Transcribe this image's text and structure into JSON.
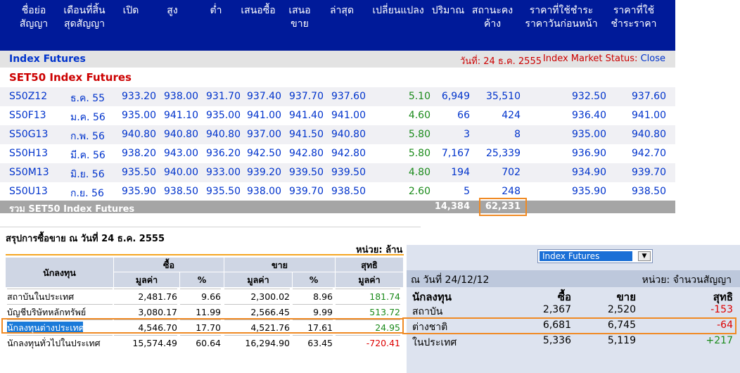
{
  "header": {
    "columns": [
      "ชื่อย่อ\nสัญญา",
      "เดือนที่สิ้น\nสุดสัญญา",
      "เปิด",
      "สูง",
      "ต่ำ",
      "เสนอซื้อ",
      "เสนอ\nขาย",
      "ล่าสุด",
      "เปลี่ยนแปลง",
      "ปริมาณ",
      "สถานะคง\nค้าง",
      "ราคาที่ใช้ชำระ\nราคาวันก่อนหน้า",
      "ราคาที่ใช้\nชำระราคา"
    ]
  },
  "bar": {
    "title": "Index Futures",
    "date": "วันที่: 24 ธ.ค. 2555",
    "status_label": "Index Market Status:",
    "status_value": "Close"
  },
  "section_title": "SET50 Index Futures",
  "futures": [
    {
      "symbol": "S50Z12",
      "month": "ธ.ค. 55",
      "open": "933.20",
      "high": "938.00",
      "low": "931.70",
      "bid": "937.40",
      "offer": "937.70",
      "last": "937.60",
      "change": "5.10",
      "volume": "6,949",
      "oi": "35,510",
      "prev_settle": "932.50",
      "settle": "937.60"
    },
    {
      "symbol": "S50F13",
      "month": "ม.ค. 56",
      "open": "935.00",
      "high": "941.10",
      "low": "935.00",
      "bid": "941.00",
      "offer": "941.40",
      "last": "941.00",
      "change": "4.60",
      "volume": "66",
      "oi": "424",
      "prev_settle": "936.40",
      "settle": "941.00"
    },
    {
      "symbol": "S50G13",
      "month": "ก.พ. 56",
      "open": "940.80",
      "high": "940.80",
      "low": "940.80",
      "bid": "937.00",
      "offer": "941.50",
      "last": "940.80",
      "change": "5.80",
      "volume": "3",
      "oi": "8",
      "prev_settle": "935.00",
      "settle": "940.80"
    },
    {
      "symbol": "S50H13",
      "month": "มี.ค. 56",
      "open": "938.20",
      "high": "943.00",
      "low": "936.20",
      "bid": "942.50",
      "offer": "942.80",
      "last": "942.80",
      "change": "5.80",
      "volume": "7,167",
      "oi": "25,339",
      "prev_settle": "936.90",
      "settle": "942.70"
    },
    {
      "symbol": "S50M13",
      "month": "มิ.ย. 56",
      "open": "935.50",
      "high": "940.00",
      "low": "933.00",
      "bid": "939.20",
      "offer": "939.50",
      "last": "939.50",
      "change": "4.80",
      "volume": "194",
      "oi": "702",
      "prev_settle": "934.90",
      "settle": "939.70"
    },
    {
      "symbol": "S50U13",
      "month": "ก.ย. 56",
      "open": "935.90",
      "high": "938.50",
      "low": "935.50",
      "bid": "938.00",
      "offer": "939.70",
      "last": "938.50",
      "change": "2.60",
      "volume": "5",
      "oi": "248",
      "prev_settle": "935.90",
      "settle": "938.50"
    }
  ],
  "total": {
    "label": "รวม SET50 Index Futures",
    "volume": "14,384",
    "oi": "62,231"
  },
  "summary": {
    "title": "สรุปการซื้อขาย ณ วันที่ 24 ธ.ค. 2555",
    "unit": "หน่วย: ล้าน",
    "h_investor": "นักลงทุน",
    "h_buy": "ซื้อ",
    "h_sell": "ขาย",
    "h_net": "สุทธิ",
    "h_value": "มูลค่า",
    "h_pct": "%",
    "rows": [
      {
        "name": "สถาบันในประเทศ",
        "buy": "2,481.76",
        "buy_pct": "9.66",
        "sell": "2,300.02",
        "sell_pct": "8.96",
        "net": "181.74"
      },
      {
        "name": "บัญชีบริษัทหลักทรัพย์",
        "buy": "3,080.17",
        "buy_pct": "11.99",
        "sell": "2,566.45",
        "sell_pct": "9.99",
        "net": "513.72"
      },
      {
        "name": "นักลงทุนต่างประเทศ",
        "buy": "4,546.70",
        "buy_pct": "17.70",
        "sell": "4,521.76",
        "sell_pct": "17.61",
        "net": "24.95"
      },
      {
        "name": "นักลงทุนทั่วไปในประเทศ",
        "buy": "15,574.49",
        "buy_pct": "60.64",
        "sell": "16,294.90",
        "sell_pct": "63.45",
        "net": "-720.41"
      }
    ]
  },
  "panel": {
    "dropdown_value": "Index Futures",
    "date": "ณ วันที่ 24/12/12",
    "unit": "หน่วย: จำนวนสัญญา",
    "h_investor": "นักลงทุน",
    "h_buy": "ซื้อ",
    "h_sell": "ขาย",
    "h_net": "สุทธิ",
    "rows": [
      {
        "name": "สถาบัน",
        "buy": "2,367",
        "sell": "2,520",
        "net": "-153"
      },
      {
        "name": "ต่างชาติ",
        "buy": "6,681",
        "sell": "6,745",
        "net": "-64"
      },
      {
        "name": "ในประเทศ",
        "buy": "5,336",
        "sell": "5,119",
        "net": "+217"
      }
    ]
  },
  "colors": {
    "header_bg": "#001a99",
    "accent_red": "#cc0000",
    "link_blue": "#0033cc",
    "highlight": "#f08a24",
    "positive": "#1a8a1a"
  }
}
